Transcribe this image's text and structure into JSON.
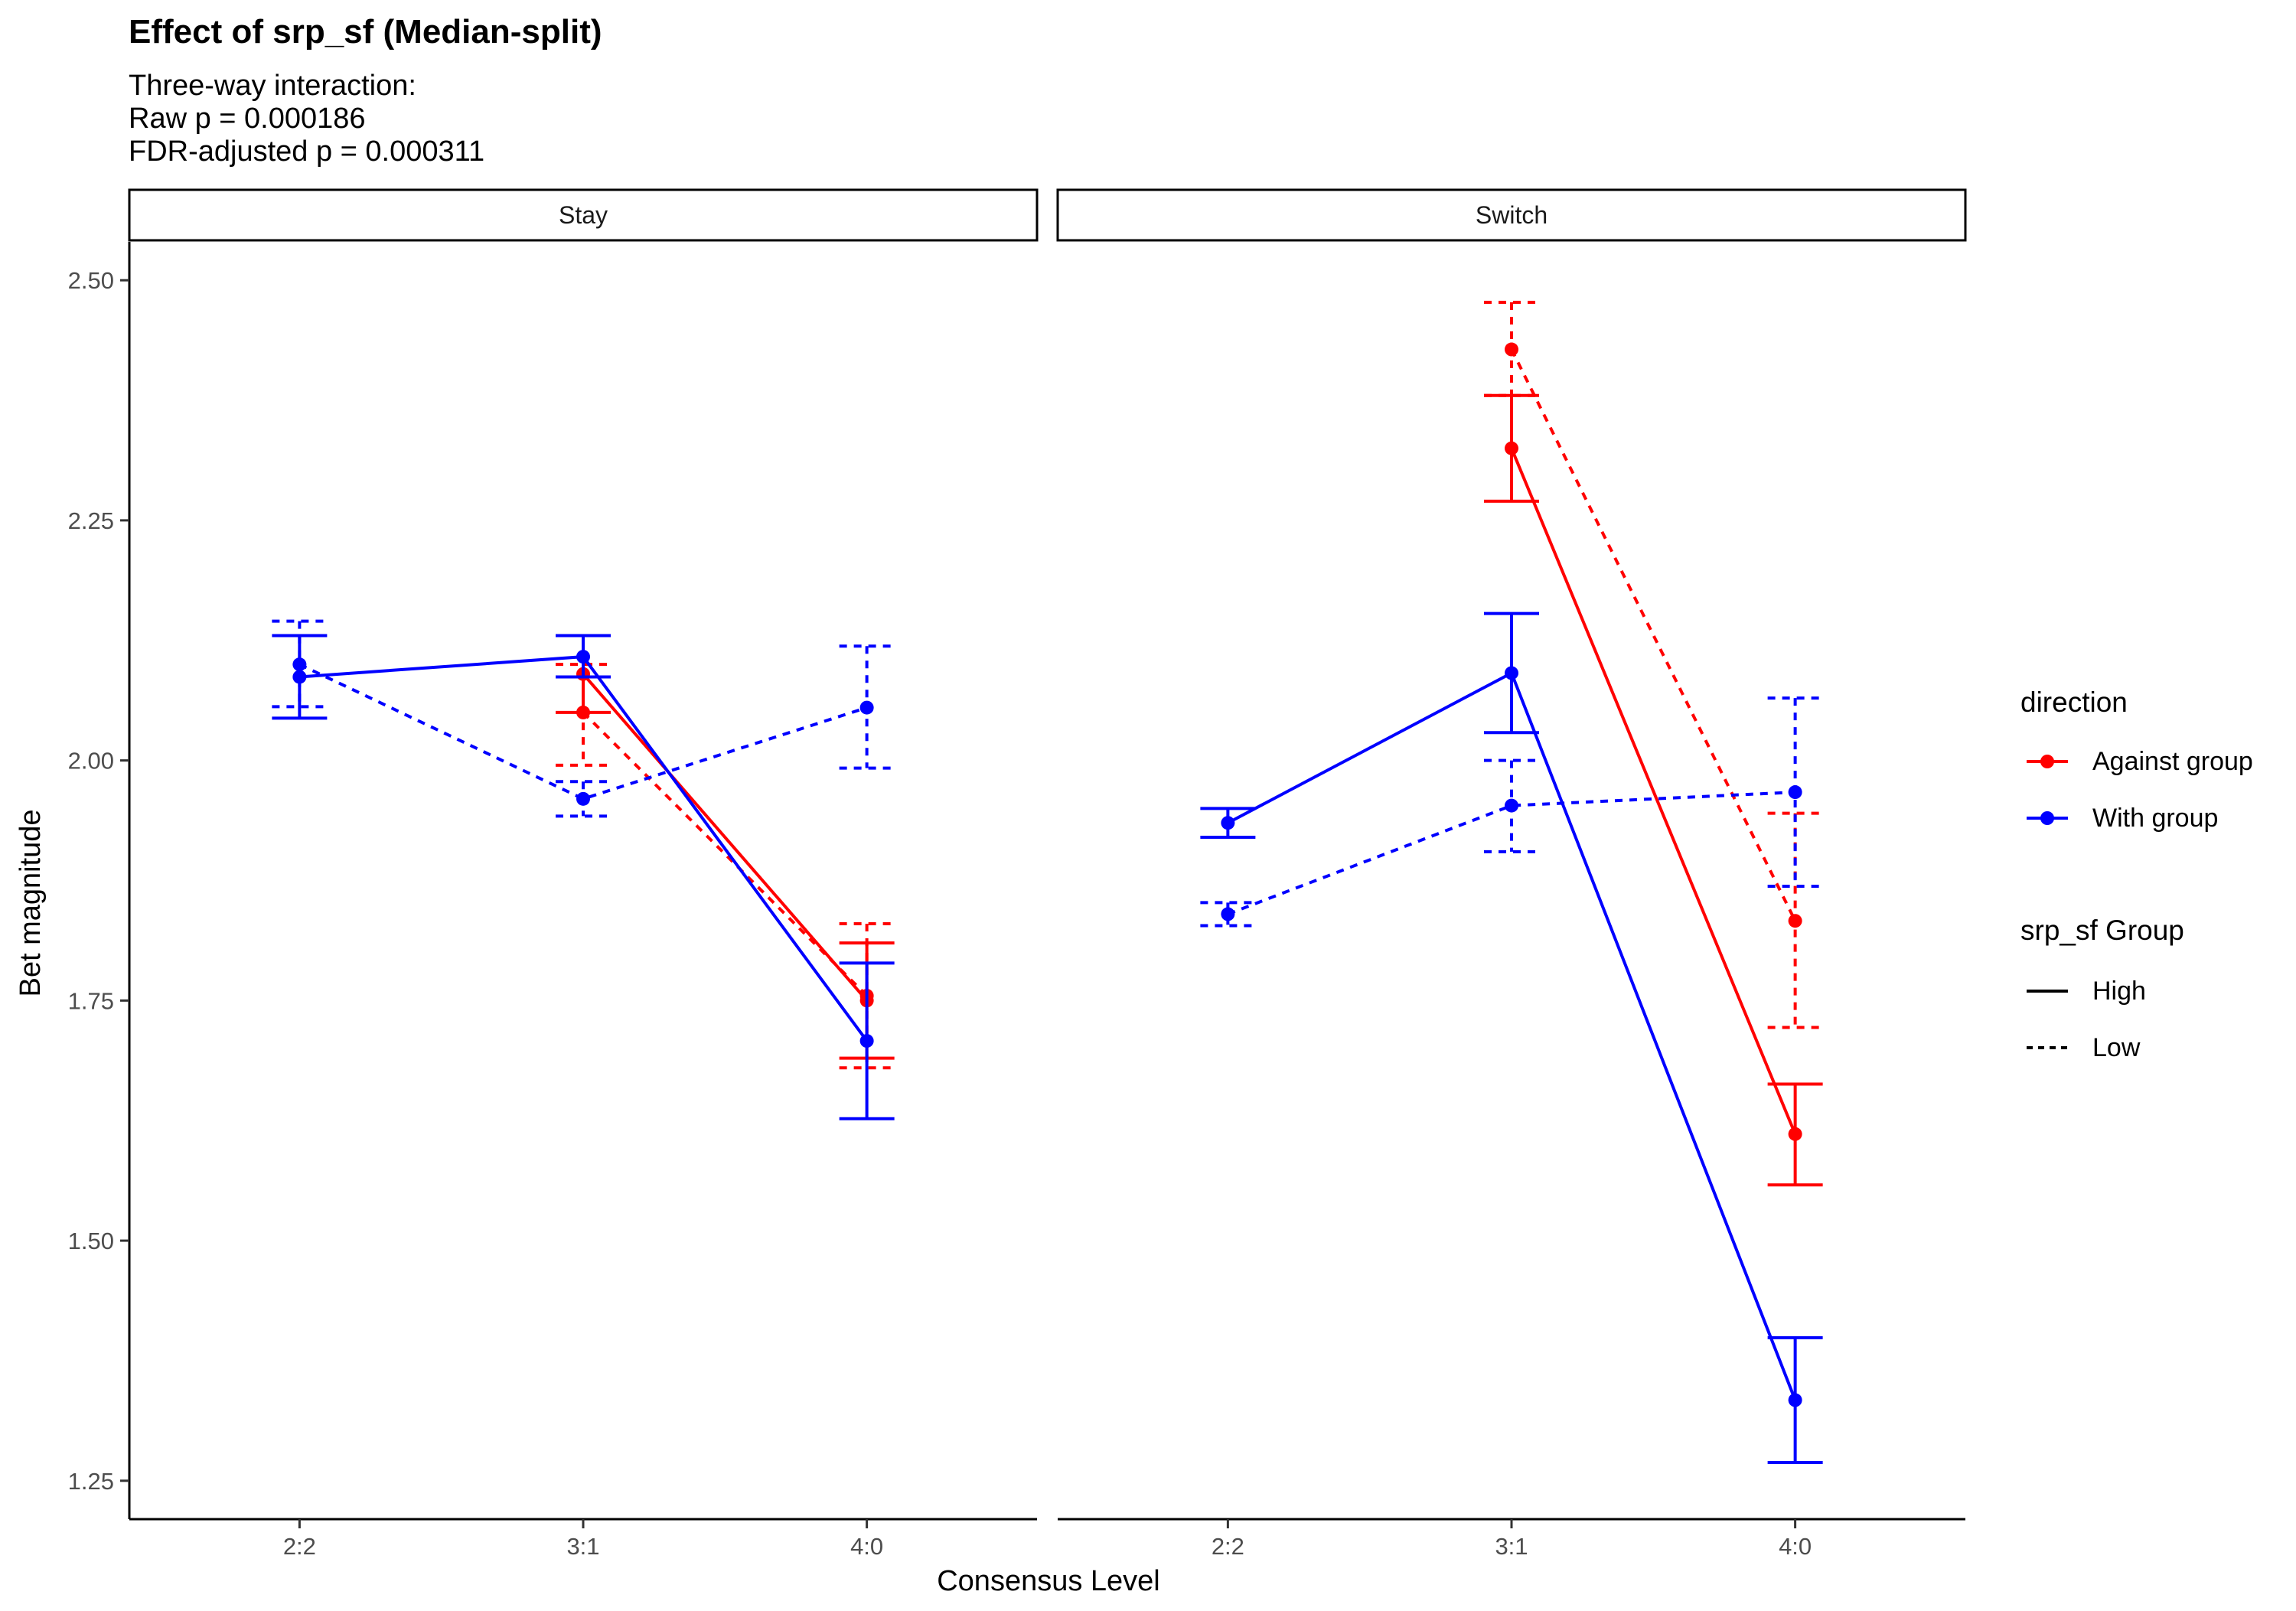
{
  "chart_data": {
    "type": "line",
    "title": "Effect of srp_sf (Median-split)",
    "subtitle_lines": [
      "Three-way interaction:",
      "Raw p = 0.000186",
      "FDR-adjusted p = 0.000311"
    ],
    "xlabel": "Consensus Level",
    "ylabel": "Bet magnitude",
    "categories": [
      "2:2",
      "3:1",
      "4:0"
    ],
    "ylim": [
      1.21,
      2.54
    ],
    "yticks": [
      1.25,
      1.5,
      1.75,
      2.0,
      2.25,
      2.5
    ],
    "ytick_labels": [
      "1.25",
      "1.50",
      "1.75",
      "2.00",
      "2.25",
      "2.50"
    ],
    "grid": false,
    "legend_position": "right",
    "legend": {
      "direction_title": "direction",
      "direction_items": [
        {
          "label": "Against group",
          "color": "#ff0000"
        },
        {
          "label": "With group",
          "color": "#0000ff"
        }
      ],
      "group_title": "srp_sf Group",
      "group_items": [
        {
          "label": "High",
          "linetype": "solid"
        },
        {
          "label": "Low",
          "linetype": "dashed"
        }
      ]
    },
    "panels": [
      {
        "label": "Stay",
        "series": [
          {
            "direction": "Against group",
            "group": "High",
            "color": "#ff0000",
            "linetype": "solid",
            "values": [
              null,
              2.09,
              1.75
            ],
            "lower": [
              null,
              2.05,
              1.69
            ],
            "upper": [
              null,
              2.13,
              1.81
            ]
          },
          {
            "direction": "Against group",
            "group": "Low",
            "color": "#ff0000",
            "linetype": "dashed",
            "values": [
              null,
              2.05,
              1.755
            ],
            "lower": [
              null,
              1.995,
              1.68
            ],
            "upper": [
              null,
              2.1,
              1.83
            ]
          },
          {
            "direction": "With group",
            "group": "High",
            "color": "#0000ff",
            "linetype": "solid",
            "values": [
              2.087,
              2.108,
              1.708
            ],
            "lower": [
              2.044,
              2.087,
              1.627
            ],
            "upper": [
              2.13,
              2.13,
              1.789
            ]
          },
          {
            "direction": "With group",
            "group": "Low",
            "color": "#0000ff",
            "linetype": "dashed",
            "values": [
              2.1,
              1.96,
              2.055
            ],
            "lower": [
              2.056,
              1.942,
              1.992
            ],
            "upper": [
              2.145,
              1.978,
              2.119
            ]
          }
        ]
      },
      {
        "label": "Switch",
        "series": [
          {
            "direction": "Against group",
            "group": "High",
            "color": "#ff0000",
            "linetype": "solid",
            "values": [
              null,
              2.325,
              1.611
            ],
            "lower": [
              null,
              2.27,
              1.558
            ],
            "upper": [
              null,
              2.38,
              1.663
            ]
          },
          {
            "direction": "Against group",
            "group": "Low",
            "color": "#ff0000",
            "linetype": "dashed",
            "values": [
              null,
              2.428,
              1.833
            ],
            "lower": [
              null,
              2.38,
              1.722
            ],
            "upper": [
              null,
              2.477,
              1.945
            ]
          },
          {
            "direction": "With group",
            "group": "High",
            "color": "#0000ff",
            "linetype": "solid",
            "values": [
              1.935,
              2.091,
              1.334
            ],
            "lower": [
              1.92,
              2.029,
              1.269
            ],
            "upper": [
              1.95,
              2.153,
              1.399
            ]
          },
          {
            "direction": "With group",
            "group": "Low",
            "color": "#0000ff",
            "linetype": "dashed",
            "values": [
              1.84,
              1.953,
              1.967
            ],
            "lower": [
              1.828,
              1.905,
              1.869
            ],
            "upper": [
              1.852,
              2.0,
              2.065
            ]
          }
        ]
      }
    ]
  }
}
